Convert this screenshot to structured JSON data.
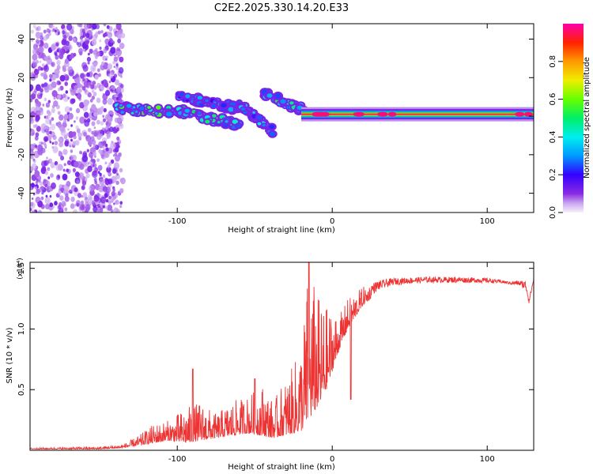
{
  "title": "C2E2.2025.330.14.20.E33",
  "chart_data": [
    {
      "type": "heatmap",
      "name": "spectrogram",
      "xlabel": "Height of straight line (km)",
      "ylabel": "Frequency (Hz)",
      "xlim": [
        -195,
        130
      ],
      "ylim": [
        -50,
        48
      ],
      "xticks": [
        -100,
        0,
        100
      ],
      "xtick_labels": [
        "-100",
        "0",
        "100"
      ],
      "yticks": [
        -40,
        -20,
        0,
        20,
        40
      ],
      "ytick_labels": [
        "-40",
        "-20",
        "0",
        "20",
        "40"
      ],
      "colorbar": {
        "label": "Normalized spectral amplitude",
        "range": [
          0,
          1
        ],
        "ticks": [
          0.0,
          0.2,
          0.4,
          0.6,
          0.8
        ],
        "tick_labels": [
          "0.0",
          "0.2",
          "0.4",
          "0.6",
          "0.8"
        ]
      },
      "features": [
        {
          "desc": "broadband noise",
          "x_range": [
            -195,
            -135
          ],
          "y_range": [
            -50,
            48
          ],
          "amplitude": 0.15
        },
        {
          "desc": "band",
          "x_range": [
            -140,
            -95
          ],
          "y_start": 4,
          "y_end": 2,
          "amplitude": 0.45
        },
        {
          "desc": "band",
          "x_range": [
            -100,
            -60
          ],
          "y_start": 2,
          "y_end": -4,
          "amplitude": 0.4
        },
        {
          "desc": "band",
          "x_range": [
            -100,
            -60
          ],
          "y_start": 10,
          "y_end": 4,
          "amplitude": 0.3
        },
        {
          "desc": "band",
          "x_range": [
            -60,
            -38
          ],
          "y_start": 6,
          "y_end": -8,
          "amplitude": 0.35
        },
        {
          "desc": "band",
          "x_range": [
            -45,
            -15
          ],
          "y_start": 12,
          "y_end": 2,
          "amplitude": 0.4
        },
        {
          "desc": "band",
          "x_range": [
            -20,
            130
          ],
          "y_start": 1,
          "y_end": 1,
          "amplitude": 0.95
        }
      ]
    },
    {
      "type": "line",
      "name": "snr",
      "xlabel": "Height of straight line (km)",
      "ylabel": "SNR (10 * v/v)",
      "multiplier": "(x10⁴)",
      "xlim": [
        -195,
        130
      ],
      "ylim": [
        0,
        1.55
      ],
      "xticks": [
        -100,
        0,
        100
      ],
      "xtick_labels": [
        "-100",
        "0",
        "100"
      ],
      "yticks": [
        0.5,
        1.0,
        1.5
      ],
      "ytick_labels": [
        "0.5",
        "1.0",
        "1.5"
      ],
      "color": "#ee3333",
      "envelope": {
        "x": [
          -195,
          -150,
          -135,
          -125,
          -115,
          -105,
          -95,
          -85,
          -75,
          -65,
          -55,
          -45,
          -38,
          -32,
          -25,
          -20,
          -15,
          -10,
          -5,
          0,
          5,
          10,
          20,
          30,
          40,
          60,
          80,
          100,
          110,
          115,
          120,
          125,
          127,
          130
        ],
        "baseline": [
          0.01,
          0.01,
          0.02,
          0.04,
          0.06,
          0.08,
          0.06,
          0.08,
          0.1,
          0.12,
          0.14,
          0.12,
          0.1,
          0.12,
          0.14,
          0.16,
          0.25,
          0.35,
          0.45,
          0.65,
          0.85,
          1.0,
          1.2,
          1.3,
          1.35,
          1.37,
          1.37,
          1.37,
          1.37,
          1.36,
          1.35,
          1.3,
          1.2,
          1.38
        ],
        "peak": [
          0.02,
          0.03,
          0.05,
          0.12,
          0.22,
          0.25,
          0.35,
          0.4,
          0.3,
          0.4,
          0.45,
          0.55,
          0.4,
          0.55,
          0.7,
          0.9,
          1.55,
          1.3,
          1.2,
          1.15,
          1.12,
          1.25,
          1.35,
          1.4,
          1.42,
          1.43,
          1.43,
          1.42,
          1.4,
          1.39,
          1.4,
          1.4,
          1.25,
          1.43
        ]
      },
      "spikes": [
        {
          "x": -90,
          "y": 0.67
        },
        {
          "x": -50,
          "y": 0.59
        },
        {
          "x": -15,
          "y": 1.55
        },
        {
          "x": 12,
          "y": 0.42
        }
      ]
    }
  ]
}
